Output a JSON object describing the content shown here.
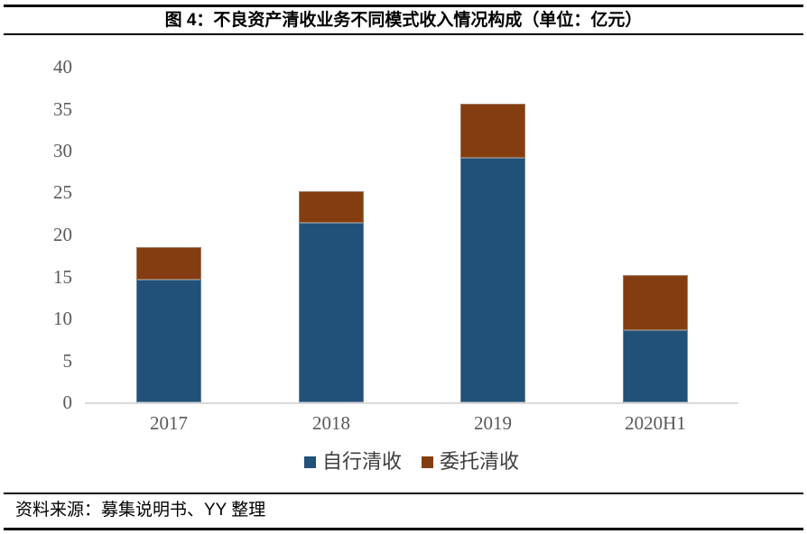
{
  "header": {
    "title": "图 4：不良资产清收业务不同模式收入情况构成（单位：亿元）"
  },
  "footer": {
    "source": "资料来源：募集说明书、YY 整理"
  },
  "colors": {
    "series_self": "#215179",
    "series_entrust": "#843D10",
    "axis_line": "#D9D9D9",
    "tick_text": "#595959",
    "legend_text": "#3F3F3F",
    "title_text": "#000000"
  },
  "chart_data": {
    "type": "bar",
    "stacked": true,
    "title": "图 4：不良资产清收业务不同模式收入情况构成（单位：亿元）",
    "categories": [
      "2017",
      "2018",
      "2019",
      "2020H1"
    ],
    "series": [
      {
        "name": "自行清收",
        "color": "#215179",
        "values": [
          14.6,
          21.4,
          29.1,
          8.6
        ]
      },
      {
        "name": "委托清收",
        "color": "#843D10",
        "values": [
          3.9,
          3.8,
          6.4,
          6.6
        ]
      }
    ],
    "totals": [
      18.5,
      25.2,
      35.5,
      15.2
    ],
    "ylim": [
      0,
      40
    ],
    "yticks": [
      0,
      5,
      10,
      15,
      20,
      25,
      30,
      35,
      40
    ],
    "grid": false,
    "legend_position": "bottom",
    "unit": "亿元"
  }
}
